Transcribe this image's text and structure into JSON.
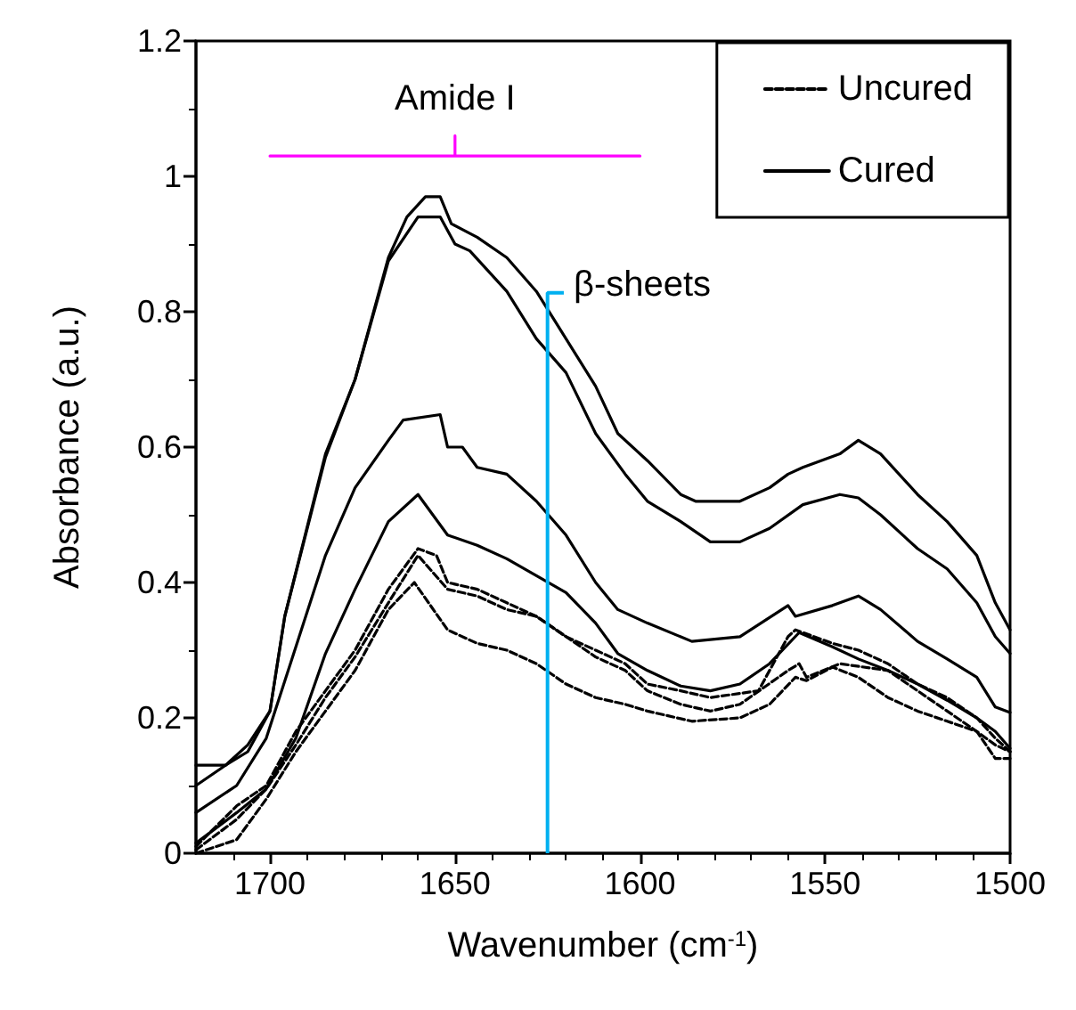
{
  "chart_data": {
    "type": "line",
    "xlabel": "Wavenumber (cm$^{-1}$)",
    "ylabel": "Absorbance (a.u.)",
    "xlim": [
      1720,
      1500
    ],
    "xticks": [
      1700,
      1650,
      1600,
      1550,
      1500
    ],
    "ylim": [
      0,
      1.2
    ],
    "yticks": [
      0,
      0.2,
      0.4,
      0.6,
      0.8,
      1,
      1.2
    ],
    "grid": false,
    "legend": "top right",
    "marker": "none",
    "ref_lines": [
      {
        "axis": "x",
        "value": 1625,
        "label": "β-sheets",
        "color": "#00b0f0"
      }
    ],
    "annotations": [
      {
        "text": "Amide I",
        "x": 1650,
        "y": 1.06
      }
    ],
    "series": [
      {
        "color": "#ff00ff",
        "line_style": "solid",
        "x": [
          1700,
          1650,
          1650,
          1650,
          1600
        ],
        "values": [
          1.03,
          1.03,
          1.06,
          1.03,
          1.03
        ]
      },
      {
        "name": "Uncured",
        "color": "#000000",
        "line_style": "dashed",
        "x": [
          1720,
          1709,
          1701,
          1693,
          1685,
          1677,
          1668,
          1660,
          1655,
          1652,
          1644,
          1636,
          1628,
          1620,
          1612,
          1604,
          1598,
          1589,
          1581,
          1568,
          1560,
          1558,
          1548,
          1541,
          1533,
          1525,
          1517,
          1509,
          1504,
          1500
        ],
        "values": [
          0.01,
          0.07,
          0.1,
          0.18,
          0.24,
          0.3,
          0.39,
          0.45,
          0.44,
          0.4,
          0.39,
          0.37,
          0.35,
          0.32,
          0.3,
          0.28,
          0.25,
          0.24,
          0.23,
          0.24,
          0.32,
          0.33,
          0.31,
          0.3,
          0.28,
          0.25,
          0.23,
          0.2,
          0.17,
          0.15
        ]
      },
      {
        "color": "#000000",
        "line_style": "dashed",
        "x": [
          1720,
          1709,
          1701,
          1693,
          1685,
          1677,
          1668,
          1660,
          1652,
          1644,
          1636,
          1628,
          1620,
          1612,
          1604,
          1598,
          1589,
          1581,
          1573,
          1560,
          1557,
          1555,
          1546,
          1533,
          1525,
          1517,
          1509,
          1504,
          1500
        ],
        "values": [
          0.005,
          0.05,
          0.095,
          0.16,
          0.23,
          0.29,
          0.37,
          0.44,
          0.39,
          0.38,
          0.36,
          0.35,
          0.32,
          0.29,
          0.27,
          0.24,
          0.22,
          0.21,
          0.22,
          0.27,
          0.28,
          0.26,
          0.28,
          0.27,
          0.24,
          0.21,
          0.18,
          0.16,
          0.15
        ]
      },
      {
        "color": "#000000",
        "line_style": "dashed",
        "x": [
          1720,
          1709,
          1701,
          1693,
          1685,
          1677,
          1668,
          1661,
          1652,
          1644,
          1636,
          1628,
          1620,
          1612,
          1604,
          1598,
          1586,
          1573,
          1565,
          1558,
          1555,
          1548,
          1541,
          1533,
          1525,
          1517,
          1509,
          1504,
          1500
        ],
        "values": [
          0.0,
          0.02,
          0.08,
          0.15,
          0.21,
          0.27,
          0.36,
          0.4,
          0.33,
          0.31,
          0.3,
          0.28,
          0.25,
          0.23,
          0.22,
          0.21,
          0.195,
          0.2,
          0.22,
          0.26,
          0.255,
          0.275,
          0.26,
          0.23,
          0.21,
          0.195,
          0.18,
          0.14,
          0.14
        ]
      },
      {
        "name": "Cured",
        "color": "#000000",
        "line_style": "solid",
        "x": [
          1720,
          1712,
          1706,
          1700,
          1696,
          1685,
          1677,
          1668,
          1663,
          1658,
          1654,
          1651,
          1644,
          1636,
          1628,
          1620,
          1612,
          1606,
          1598,
          1589,
          1585,
          1573,
          1565,
          1560,
          1556,
          1546,
          1541,
          1535,
          1525,
          1517,
          1509,
          1504,
          1500
        ],
        "values": [
          0.1,
          0.13,
          0.16,
          0.21,
          0.35,
          0.59,
          0.7,
          0.88,
          0.94,
          0.97,
          0.97,
          0.93,
          0.91,
          0.88,
          0.83,
          0.76,
          0.69,
          0.62,
          0.58,
          0.53,
          0.52,
          0.52,
          0.54,
          0.56,
          0.57,
          0.59,
          0.61,
          0.59,
          0.53,
          0.49,
          0.44,
          0.37,
          0.33
        ]
      },
      {
        "color": "#000000",
        "line_style": "solid",
        "x": [
          1720,
          1712,
          1706,
          1700,
          1696,
          1685,
          1677,
          1668,
          1660,
          1654,
          1650,
          1646,
          1636,
          1628,
          1620,
          1612,
          1604,
          1598,
          1589,
          1581,
          1573,
          1565,
          1556,
          1546,
          1541,
          1535,
          1525,
          1517,
          1509,
          1504,
          1500
        ],
        "values": [
          0.13,
          0.13,
          0.15,
          0.21,
          0.35,
          0.585,
          0.7,
          0.875,
          0.94,
          0.94,
          0.9,
          0.89,
          0.83,
          0.76,
          0.71,
          0.62,
          0.56,
          0.52,
          0.49,
          0.46,
          0.46,
          0.48,
          0.515,
          0.53,
          0.525,
          0.5,
          0.45,
          0.42,
          0.37,
          0.32,
          0.295
        ]
      },
      {
        "color": "#000000",
        "line_style": "solid",
        "x": [
          1720,
          1709,
          1701,
          1693,
          1685,
          1677,
          1668,
          1664,
          1654,
          1652,
          1648,
          1644,
          1636,
          1628,
          1620,
          1612,
          1606,
          1598,
          1586,
          1573,
          1560,
          1558,
          1548,
          1541,
          1535,
          1525,
          1517,
          1509,
          1504,
          1500
        ],
        "values": [
          0.06,
          0.1,
          0.17,
          0.305,
          0.44,
          0.54,
          0.61,
          0.64,
          0.648,
          0.6,
          0.6,
          0.57,
          0.56,
          0.52,
          0.47,
          0.4,
          0.36,
          0.34,
          0.313,
          0.32,
          0.366,
          0.35,
          0.366,
          0.38,
          0.36,
          0.313,
          0.287,
          0.26,
          0.216,
          0.208
        ]
      },
      {
        "color": "#000000",
        "line_style": "solid",
        "x": [
          1720,
          1709,
          1701,
          1693,
          1685,
          1677,
          1668,
          1660,
          1652,
          1644,
          1636,
          1628,
          1620,
          1612,
          1606,
          1598,
          1589,
          1581,
          1573,
          1565,
          1557,
          1548,
          1541,
          1533,
          1525,
          1517,
          1509,
          1504,
          1500
        ],
        "values": [
          0.015,
          0.06,
          0.095,
          0.17,
          0.295,
          0.39,
          0.49,
          0.53,
          0.47,
          0.455,
          0.435,
          0.41,
          0.385,
          0.34,
          0.295,
          0.27,
          0.247,
          0.24,
          0.25,
          0.28,
          0.326,
          0.305,
          0.287,
          0.27,
          0.25,
          0.226,
          0.2,
          0.18,
          0.155
        ]
      }
    ]
  }
}
